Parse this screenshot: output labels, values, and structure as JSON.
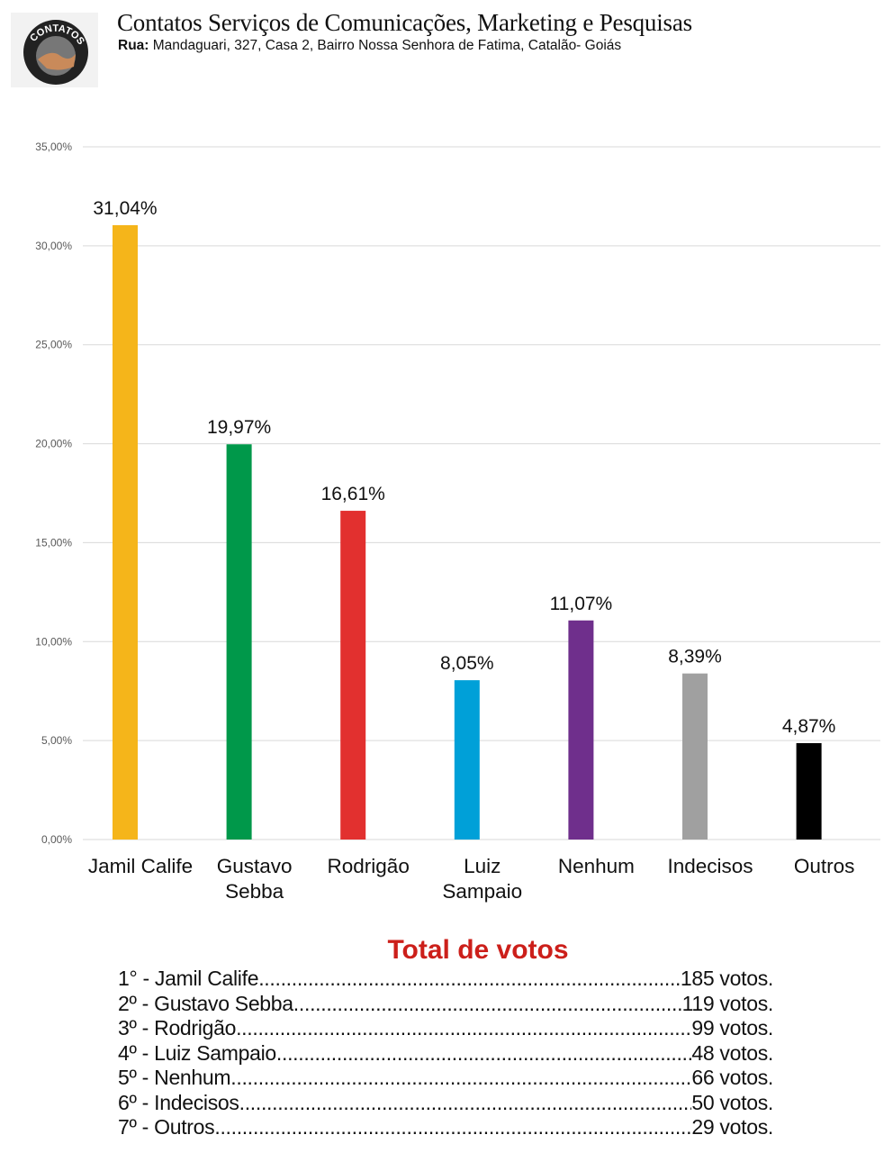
{
  "header": {
    "logo_text": "CONTATOS",
    "title": "Contatos Serviços de Comunicações, Marketing e Pesquisas",
    "address_label": "Rua:",
    "address": " Mandaguari, 327, Casa 2, Bairro Nossa Senhora de Fatima, Catalão- Goiás"
  },
  "chart_data": {
    "type": "bar",
    "categories": [
      "Jamil Calife",
      "Gustavo Sebba",
      "Rodrigão",
      "Luiz Sampaio",
      "Nenhum",
      "Indecisos",
      "Outros"
    ],
    "category_lines": [
      [
        "Jamil Calife"
      ],
      [
        "Gustavo",
        "Sebba"
      ],
      [
        "Rodrigão"
      ],
      [
        "Luiz",
        "Sampaio"
      ],
      [
        "Nenhum"
      ],
      [
        "Indecisos"
      ],
      [
        "Outros"
      ]
    ],
    "values": [
      31.04,
      19.97,
      16.61,
      8.05,
      11.07,
      8.39,
      4.87
    ],
    "data_labels": [
      "31,04%",
      "19,97%",
      "16,61%",
      "8,05%",
      "11,07%",
      "8,39%",
      "4,87%"
    ],
    "colors": [
      "#f5b51a",
      "#00984a",
      "#e2302f",
      "#00a0d8",
      "#6f2f8c",
      "#a0a0a0",
      "#000000"
    ],
    "yticks": [
      "0,00%",
      "5,00%",
      "10,00%",
      "15,00%",
      "20,00%",
      "25,00%",
      "30,00%",
      "35,00%"
    ],
    "ylim": [
      0,
      35
    ],
    "grid": true,
    "title": "",
    "xlabel": "",
    "ylabel": ""
  },
  "totals": {
    "title": "Total de votos",
    "rows": [
      {
        "rank": "1° - Jamil Calife",
        "votes": "185 votos."
      },
      {
        "rank": "2º - Gustavo Sebba",
        "votes": "119 votos."
      },
      {
        "rank": "3º - Rodrigão",
        "votes": "99 votos."
      },
      {
        "rank": "4º - Luiz Sampaio",
        "votes": "48 votos."
      },
      {
        "rank": "5º - Nenhum",
        "votes": "66 votos."
      },
      {
        "rank": "6º - Indecisos",
        "votes": "50 votos."
      },
      {
        "rank": "7º - Outros",
        "votes": "29 votos."
      }
    ]
  }
}
